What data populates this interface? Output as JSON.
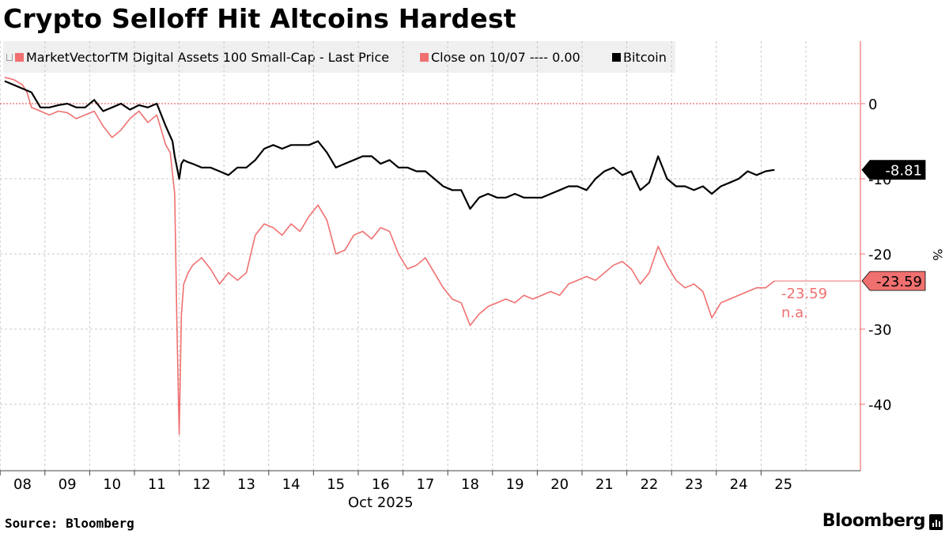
{
  "title": "Crypto Selloff Hit Altcoins Hardest",
  "legend": {
    "small_cap": "MarketVectorTM Digital Assets 100 Small-Cap - Last Price",
    "close": "Close on 10/07 ---- 0.00",
    "bitcoin": "Bitcoin"
  },
  "source": "Source: Bloomberg",
  "brand": "Bloomberg",
  "colors": {
    "small_cap": "#f07070",
    "bitcoin": "#000000",
    "zero_line": "#e04848",
    "axis": "#f07070"
  },
  "chart_data": {
    "type": "line",
    "title": "Crypto Selloff Hit Altcoins Hardest",
    "xlabel": "Oct 2025",
    "ylabel": "%",
    "x_tick_labels": [
      "08",
      "09",
      "10",
      "11",
      "12",
      "13",
      "14",
      "15",
      "16",
      "17",
      "18",
      "19",
      "20",
      "21",
      "22",
      "23",
      "24",
      "25"
    ],
    "y_tick_labels": [
      "0",
      "-10",
      "-20",
      "-30",
      "-40"
    ],
    "y_ticks": [
      0,
      -10,
      -20,
      -30,
      -40
    ],
    "xlim": [
      8,
      25
    ],
    "ylim": [
      -48,
      9
    ],
    "grid": true,
    "legend_position": "top-left",
    "reference_line": {
      "label": "Close on 10/07",
      "value": 0.0
    },
    "series": [
      {
        "name": "MarketVectorTM Digital Assets 100 Small-Cap - Last Price",
        "last_value_label": "-23.59",
        "secondary_label": "-23.59",
        "secondary_note": "n.a.",
        "x": [
          7.6,
          7.8,
          8.0,
          8.1,
          8.2,
          8.4,
          8.6,
          8.8,
          9.0,
          9.2,
          9.4,
          9.6,
          9.8,
          10.0,
          10.2,
          10.4,
          10.6,
          10.8,
          11.0,
          11.2,
          11.3,
          11.4,
          11.45,
          11.5,
          11.55,
          11.6,
          11.7,
          11.8,
          12.0,
          12.2,
          12.4,
          12.6,
          12.8,
          13.0,
          13.2,
          13.4,
          13.6,
          13.8,
          14.0,
          14.2,
          14.4,
          14.6,
          14.8,
          15.0,
          15.2,
          15.4,
          15.6,
          15.8,
          16.0,
          16.2,
          16.4,
          16.6,
          16.8,
          17.0,
          17.2,
          17.4,
          17.6,
          17.8,
          18.0,
          18.2,
          18.4,
          18.6,
          18.8,
          19.0,
          19.2,
          19.4,
          19.6,
          19.8,
          20.0,
          20.2,
          20.4,
          20.6,
          20.8,
          21.0,
          21.2,
          21.4,
          21.6,
          21.8,
          22.0,
          22.2,
          22.4,
          22.6,
          22.8,
          23.0,
          23.2,
          23.4,
          23.6,
          23.8,
          24.0,
          24.2,
          24.4,
          24.6,
          24.8
        ],
        "values": [
          3.5,
          3.2,
          2.5,
          1.5,
          -0.5,
          -1.0,
          -1.5,
          -1.0,
          -1.2,
          -2.0,
          -1.5,
          -1.0,
          -3.0,
          -4.5,
          -3.5,
          -2.0,
          -1.0,
          -2.5,
          -1.5,
          -5.5,
          -6.5,
          -12.0,
          -30.0,
          -44.0,
          -28.0,
          -24.0,
          -22.5,
          -21.5,
          -20.5,
          -22.0,
          -24.0,
          -22.5,
          -23.5,
          -22.5,
          -17.5,
          -16.0,
          -16.5,
          -17.5,
          -16.0,
          -17.0,
          -15.0,
          -13.5,
          -15.5,
          -20.0,
          -19.5,
          -17.5,
          -17.0,
          -18.0,
          -16.5,
          -17.0,
          -20.0,
          -22.0,
          -21.5,
          -20.5,
          -22.5,
          -24.5,
          -26.0,
          -26.5,
          -29.5,
          -28.0,
          -27.0,
          -26.5,
          -26.0,
          -26.5,
          -25.5,
          -26.0,
          -25.5,
          -25.0,
          -25.5,
          -24.0,
          -23.5,
          -23.0,
          -23.5,
          -22.5,
          -21.5,
          -21.0,
          -22.0,
          -24.0,
          -22.5,
          -19.0,
          -21.5,
          -23.5,
          -24.5,
          -24.0,
          -25.0,
          -28.5,
          -26.5,
          -26.0,
          -25.5,
          -25.0,
          -24.5,
          -24.5,
          -23.59
        ]
      },
      {
        "name": "Bitcoin",
        "last_value_label": "-8.81",
        "x": [
          7.6,
          7.8,
          8.0,
          8.2,
          8.4,
          8.6,
          8.8,
          9.0,
          9.2,
          9.4,
          9.6,
          9.8,
          10.0,
          10.2,
          10.4,
          10.6,
          10.8,
          11.0,
          11.2,
          11.35,
          11.4,
          11.45,
          11.5,
          11.55,
          11.6,
          11.7,
          11.8,
          12.0,
          12.2,
          12.4,
          12.6,
          12.8,
          13.0,
          13.2,
          13.4,
          13.6,
          13.8,
          14.0,
          14.2,
          14.4,
          14.6,
          14.8,
          15.0,
          15.2,
          15.4,
          15.6,
          15.8,
          16.0,
          16.2,
          16.4,
          16.6,
          16.8,
          17.0,
          17.2,
          17.4,
          17.6,
          17.8,
          18.0,
          18.2,
          18.4,
          18.6,
          18.8,
          19.0,
          19.2,
          19.4,
          19.6,
          19.8,
          20.0,
          20.2,
          20.4,
          20.6,
          20.8,
          21.0,
          21.2,
          21.4,
          21.6,
          21.8,
          22.0,
          22.2,
          22.4,
          22.6,
          22.8,
          23.0,
          23.2,
          23.4,
          23.6,
          23.8,
          24.0,
          24.2,
          24.4,
          24.6,
          24.8
        ],
        "values": [
          3.0,
          2.5,
          2.0,
          1.5,
          -0.5,
          -0.5,
          -0.2,
          0.0,
          -0.5,
          -0.5,
          0.5,
          -1.0,
          -0.5,
          0.0,
          -0.8,
          -0.2,
          -0.5,
          0.0,
          -3.0,
          -5.0,
          -7.0,
          -8.5,
          -10.0,
          -8.0,
          -7.5,
          -7.8,
          -8.0,
          -8.5,
          -8.5,
          -9.0,
          -9.5,
          -8.5,
          -8.5,
          -7.5,
          -6.0,
          -5.5,
          -6.0,
          -5.5,
          -5.5,
          -5.5,
          -5.0,
          -6.5,
          -8.5,
          -8.0,
          -7.5,
          -7.0,
          -7.0,
          -8.0,
          -7.5,
          -8.5,
          -8.5,
          -9.0,
          -9.0,
          -10.0,
          -11.0,
          -11.5,
          -11.5,
          -14.0,
          -12.5,
          -12.0,
          -12.5,
          -12.5,
          -12.0,
          -12.5,
          -12.5,
          -12.5,
          -12.0,
          -11.5,
          -11.0,
          -11.0,
          -11.5,
          -10.0,
          -9.0,
          -8.5,
          -9.5,
          -9.0,
          -11.5,
          -10.5,
          -7.0,
          -10.0,
          -11.0,
          -11.0,
          -11.5,
          -11.0,
          -12.0,
          -11.0,
          -10.5,
          -10.0,
          -9.0,
          -9.5,
          -9.0,
          -8.81
        ]
      }
    ]
  }
}
